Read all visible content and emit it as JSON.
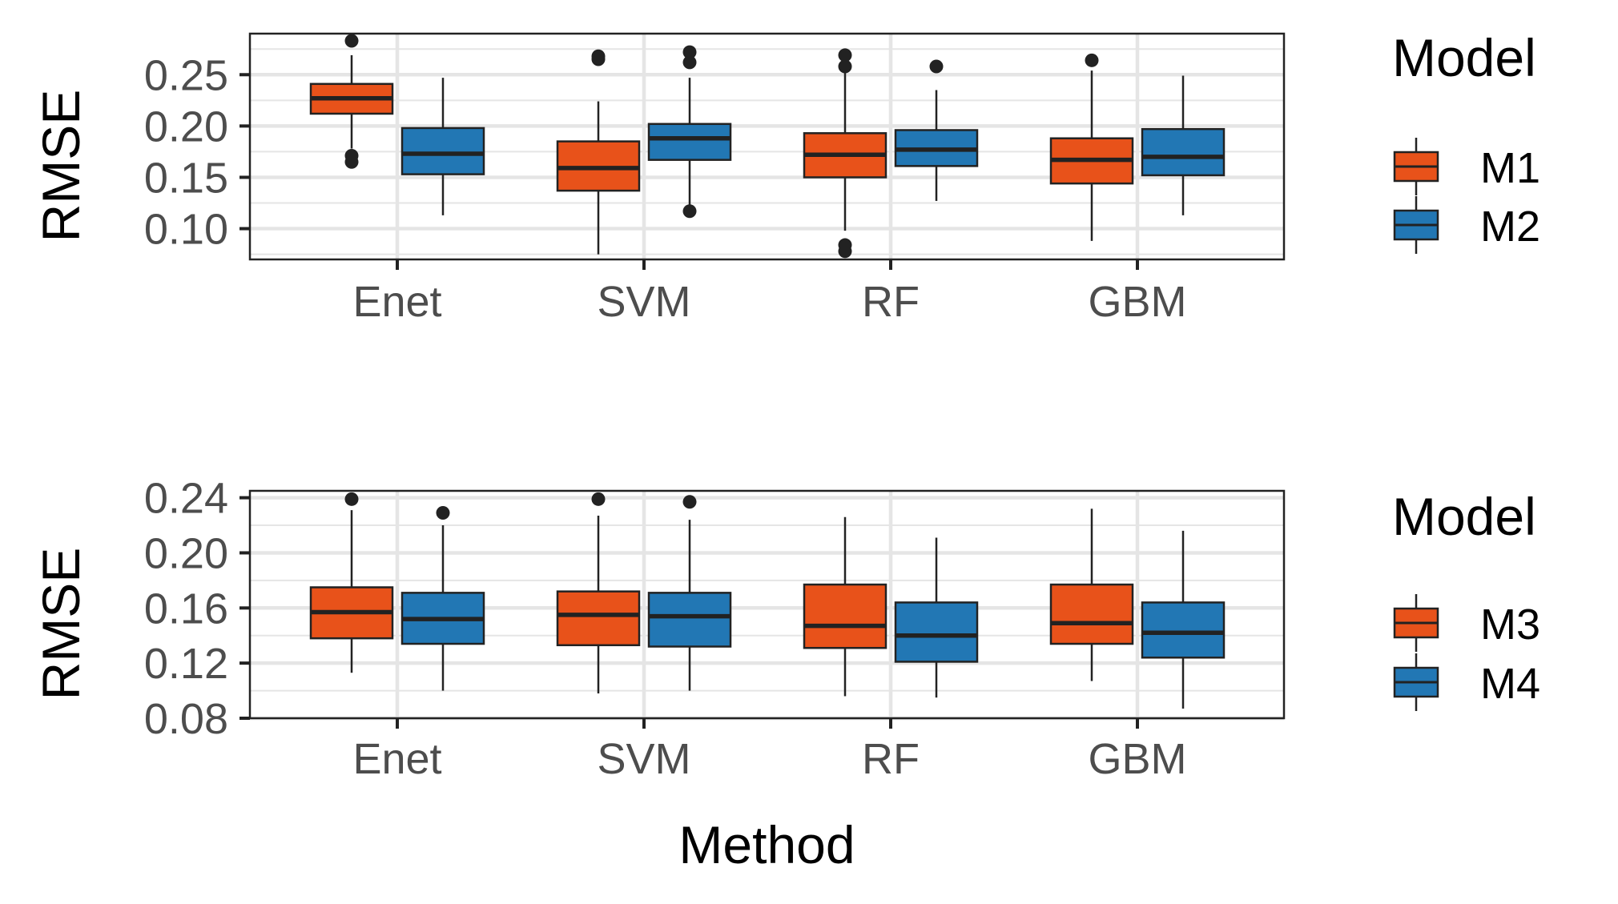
{
  "colors": {
    "orange": "#E8521A",
    "blue": "#2277B4",
    "outline": "#222222",
    "grid": "#E5E5E5",
    "text": "#4D4D4D"
  },
  "chart_data": [
    {
      "type": "box",
      "title": "",
      "xlabel": "",
      "ylabel": "RMSE",
      "ylim": [
        0.07,
        0.29
      ],
      "yticks": [
        "0.10",
        "0.15",
        "0.20",
        "0.25"
      ],
      "ytick_values": [
        0.1,
        0.15,
        0.2,
        0.25
      ],
      "categories": [
        "Enet",
        "SVM",
        "RF",
        "GBM"
      ],
      "grid": true,
      "legend": {
        "title": "Model",
        "position": "right"
      },
      "series": [
        {
          "name": "M1",
          "color": "#E8521A",
          "boxes": [
            {
              "whisker_low": 0.178,
              "q1": 0.212,
              "median": 0.227,
              "q3": 0.241,
              "whisker_high": 0.269,
              "outliers": [
                0.283,
                0.171,
                0.165
              ]
            },
            {
              "whisker_low": 0.075,
              "q1": 0.137,
              "median": 0.159,
              "q3": 0.185,
              "whisker_high": 0.224,
              "outliers": [
                0.268,
                0.265
              ]
            },
            {
              "whisker_low": 0.098,
              "q1": 0.15,
              "median": 0.172,
              "q3": 0.193,
              "whisker_high": 0.257,
              "outliers": [
                0.269,
                0.258,
                0.084,
                0.078
              ]
            },
            {
              "whisker_low": 0.088,
              "q1": 0.144,
              "median": 0.167,
              "q3": 0.188,
              "whisker_high": 0.254,
              "outliers": [
                0.264
              ]
            }
          ]
        },
        {
          "name": "M2",
          "color": "#2277B4",
          "boxes": [
            {
              "whisker_low": 0.113,
              "q1": 0.153,
              "median": 0.173,
              "q3": 0.198,
              "whisker_high": 0.247,
              "outliers": []
            },
            {
              "whisker_low": 0.123,
              "q1": 0.167,
              "median": 0.188,
              "q3": 0.202,
              "whisker_high": 0.247,
              "outliers": [
                0.272,
                0.262,
                0.117
              ]
            },
            {
              "whisker_low": 0.127,
              "q1": 0.161,
              "median": 0.177,
              "q3": 0.196,
              "whisker_high": 0.235,
              "outliers": [
                0.258
              ]
            },
            {
              "whisker_low": 0.113,
              "q1": 0.152,
              "median": 0.17,
              "q3": 0.197,
              "whisker_high": 0.249,
              "outliers": []
            }
          ]
        }
      ]
    },
    {
      "type": "box",
      "title": "",
      "xlabel": "Method",
      "ylabel": "RMSE",
      "ylim": [
        0.08,
        0.245
      ],
      "yticks": [
        "0.08",
        "0.12",
        "0.16",
        "0.20",
        "0.24"
      ],
      "ytick_values": [
        0.08,
        0.12,
        0.16,
        0.2,
        0.24
      ],
      "categories": [
        "Enet",
        "SVM",
        "RF",
        "GBM"
      ],
      "grid": true,
      "legend": {
        "title": "Model",
        "position": "right"
      },
      "series": [
        {
          "name": "M3",
          "color": "#E8521A",
          "boxes": [
            {
              "whisker_low": 0.113,
              "q1": 0.138,
              "median": 0.157,
              "q3": 0.175,
              "whisker_high": 0.231,
              "outliers": [
                0.239
              ]
            },
            {
              "whisker_low": 0.098,
              "q1": 0.133,
              "median": 0.155,
              "q3": 0.172,
              "whisker_high": 0.227,
              "outliers": [
                0.239
              ]
            },
            {
              "whisker_low": 0.096,
              "q1": 0.131,
              "median": 0.147,
              "q3": 0.177,
              "whisker_high": 0.226,
              "outliers": []
            },
            {
              "whisker_low": 0.107,
              "q1": 0.134,
              "median": 0.149,
              "q3": 0.177,
              "whisker_high": 0.232,
              "outliers": []
            }
          ]
        },
        {
          "name": "M4",
          "color": "#2277B4",
          "boxes": [
            {
              "whisker_low": 0.1,
              "q1": 0.134,
              "median": 0.152,
              "q3": 0.171,
              "whisker_high": 0.22,
              "outliers": [
                0.229
              ]
            },
            {
              "whisker_low": 0.1,
              "q1": 0.132,
              "median": 0.154,
              "q3": 0.171,
              "whisker_high": 0.224,
              "outliers": [
                0.237
              ]
            },
            {
              "whisker_low": 0.095,
              "q1": 0.121,
              "median": 0.14,
              "q3": 0.164,
              "whisker_high": 0.211,
              "outliers": []
            },
            {
              "whisker_low": 0.087,
              "q1": 0.124,
              "median": 0.142,
              "q3": 0.164,
              "whisker_high": 0.216,
              "outliers": []
            }
          ]
        }
      ]
    }
  ]
}
